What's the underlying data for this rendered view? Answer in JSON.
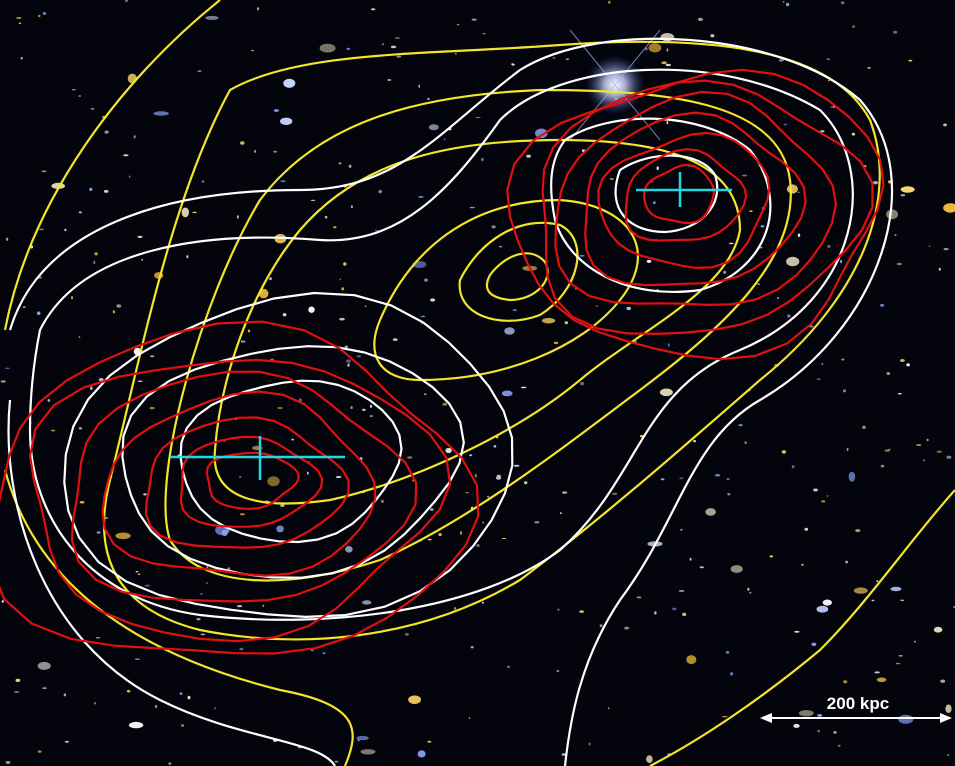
{
  "scale_bar": {
    "label": "200 kpc"
  }
}
